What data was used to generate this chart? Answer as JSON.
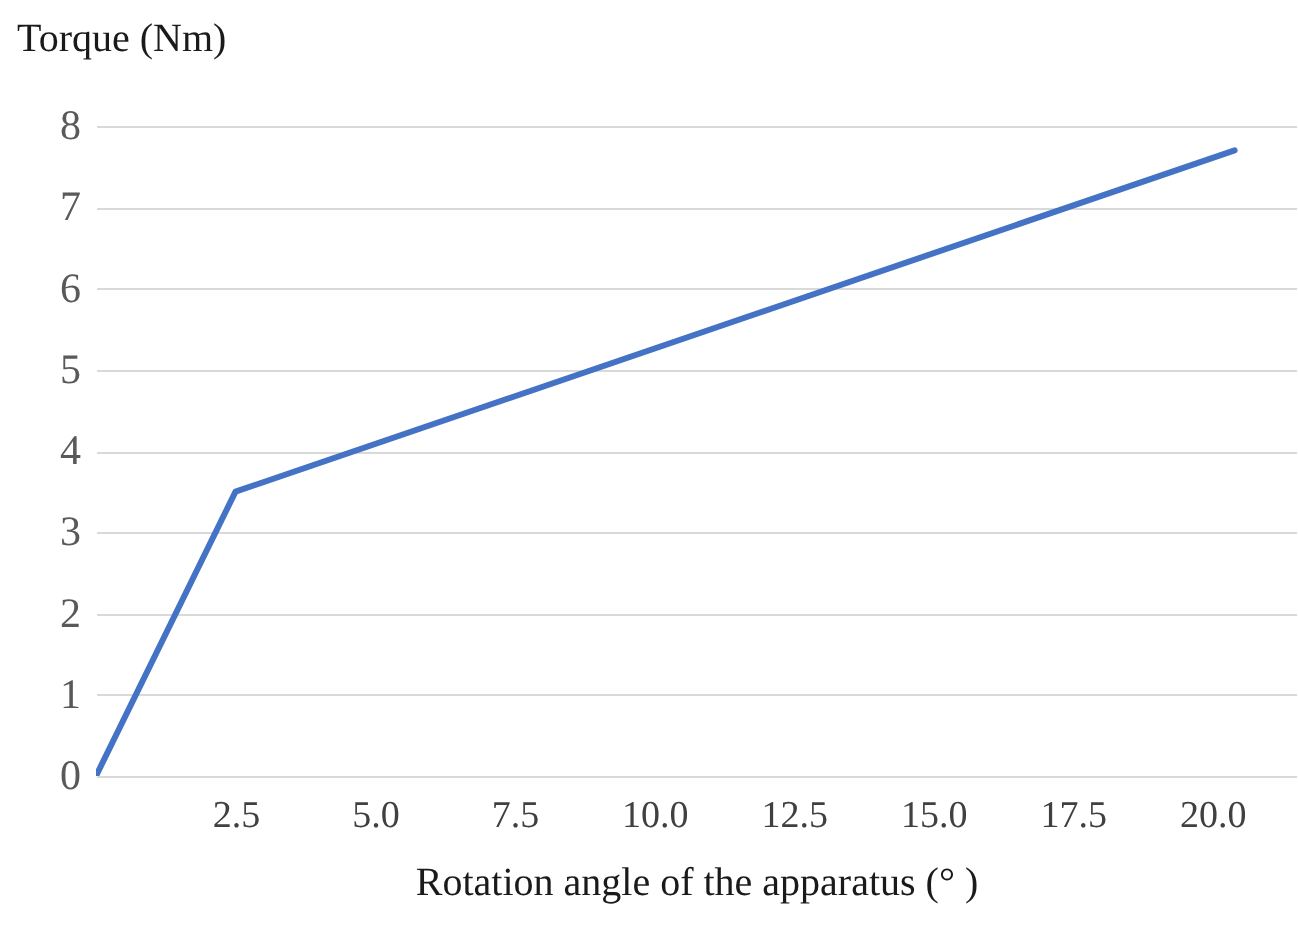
{
  "chart_data": {
    "type": "line",
    "xlabel": "Rotation angle of the apparatus (°  )",
    "ylabel": "Torque (Nm)",
    "x": [
      0,
      2.5,
      20.4
    ],
    "series": [
      {
        "color": "#4472c4",
        "values": [
          0,
          3.5,
          7.7
        ]
      }
    ],
    "xlim": [
      0,
      21.5
    ],
    "ylim": [
      0,
      8
    ],
    "xticks": [
      2.5,
      {
        "value": 5,
        "label": "5.0"
      },
      7.5,
      {
        "value": 10,
        "label": "10.0"
      },
      12.5,
      {
        "value": 15,
        "label": "15.0"
      },
      17.5,
      {
        "value": 20,
        "label": "20.0"
      }
    ],
    "yticks": [
      0,
      1,
      2,
      3,
      4,
      5,
      6,
      7,
      8
    ],
    "grid": "y",
    "marker": "none",
    "line_style": "solid"
  }
}
